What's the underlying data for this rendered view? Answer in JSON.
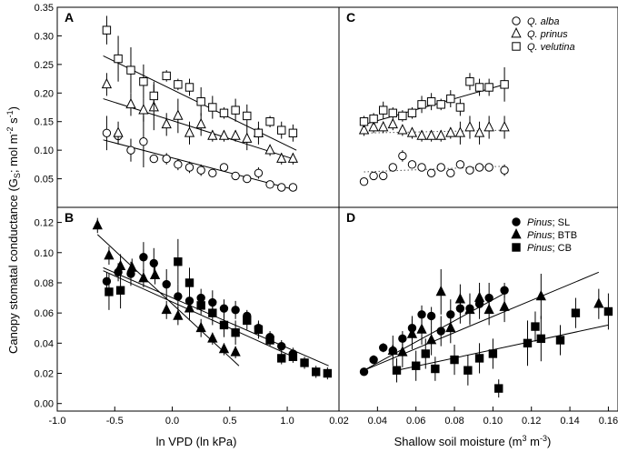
{
  "figure": {
    "y_label": "Canopy stomatal conductance (G",
    "y_label_sub": "S",
    "y_label_rest": "; mol m",
    "y_label_sup1": "-2",
    "y_label_sp": " s",
    "y_label_sup2": "-1",
    "y_label_end": ")",
    "x_label_left": "ln VPD (ln kPa)",
    "x_label_right_main": "Shallow soil moisture (m",
    "x_label_right_sup1": "3",
    "x_label_right_mid": " m",
    "x_label_right_sup2": "-3",
    "x_label_right_end": ")"
  },
  "chart_data": [
    {
      "panel": "A",
      "type": "scatter",
      "xlabel": "ln VPD (ln kPa)",
      "ylabel": "Canopy stomatal conductance (GS; mol m-2 s-1)",
      "xlim": [
        -1.0,
        1.45
      ],
      "ylim": [
        0,
        0.35
      ],
      "yticks": [
        "0.35",
        "0.30",
        "0.25",
        "0.20",
        "0.15",
        "0.10",
        "0.05"
      ],
      "yticks_values": [
        0.35,
        0.3,
        0.25,
        0.2,
        0.15,
        0.1,
        0.05
      ],
      "legend_position": "none",
      "series": [
        {
          "name": "Q. alba",
          "marker": "circle-open",
          "x": [
            -0.57,
            -0.47,
            -0.36,
            -0.25,
            -0.16,
            -0.05,
            0.05,
            0.15,
            0.25,
            0.35,
            0.45,
            0.55,
            0.65,
            0.75,
            0.85,
            0.95,
            1.05
          ],
          "y": [
            0.13,
            0.125,
            0.1,
            0.115,
            0.085,
            0.085,
            0.075,
            0.07,
            0.065,
            0.06,
            0.07,
            0.055,
            0.05,
            0.06,
            0.04,
            0.035,
            0.035
          ],
          "err": [
            0.03,
            0.01,
            0.02,
            0.045,
            0.005,
            0.01,
            0.01,
            0.01,
            0.01,
            0.005,
            0.005,
            0.005,
            0.005,
            0.01,
            0.005,
            0.005,
            0.005
          ],
          "fit": [
            [
              -0.6,
              0.118
            ],
            [
              1.08,
              0.03
            ]
          ],
          "fit_style": "solid"
        },
        {
          "name": "Q. prinus",
          "marker": "triangle-open",
          "x": [
            -0.57,
            -0.47,
            -0.36,
            -0.25,
            -0.16,
            -0.05,
            0.05,
            0.15,
            0.25,
            0.35,
            0.45,
            0.55,
            0.65,
            0.75,
            0.85,
            0.95,
            1.05
          ],
          "y": [
            0.215,
            0.13,
            0.18,
            0.17,
            0.175,
            0.145,
            0.16,
            0.13,
            0.145,
            0.125,
            0.125,
            0.125,
            0.12,
            0.13,
            0.1,
            0.085,
            0.085
          ],
          "err": [
            0.02,
            0.02,
            0.02,
            0.02,
            0.04,
            0.02,
            0.03,
            0.02,
            0.02,
            0.01,
            0.01,
            0.01,
            0.02,
            0.02,
            0.01,
            0.01,
            0.01
          ],
          "fit": [
            [
              -0.6,
              0.19
            ],
            [
              1.08,
              0.083
            ]
          ],
          "fit_style": "solid"
        },
        {
          "name": "Q. velutina",
          "marker": "square-open",
          "x": [
            -0.57,
            -0.47,
            -0.36,
            -0.25,
            -0.16,
            -0.05,
            0.05,
            0.15,
            0.25,
            0.35,
            0.45,
            0.55,
            0.65,
            0.75,
            0.85,
            0.95,
            1.05
          ],
          "y": [
            0.31,
            0.26,
            0.24,
            0.22,
            0.195,
            0.23,
            0.215,
            0.21,
            0.185,
            0.175,
            0.165,
            0.17,
            0.16,
            0.13,
            0.15,
            0.135,
            0.13
          ],
          "err": [
            0.025,
            0.04,
            0.04,
            0.03,
            0.025,
            0.01,
            0.01,
            0.015,
            0.025,
            0.02,
            0.01,
            0.02,
            0.02,
            0.01,
            0.01,
            0.015,
            0.015
          ],
          "fit": [
            [
              -0.6,
              0.265
            ],
            [
              1.08,
              0.1
            ]
          ],
          "fit_style": "solid"
        }
      ]
    },
    {
      "panel": "C",
      "type": "scatter",
      "xlabel": "Shallow soil moisture (m3 m-3)",
      "xlim": [
        0.02,
        0.165
      ],
      "ylim": [
        0,
        0.35
      ],
      "legend_position": "top-right",
      "legend": [
        "Q. alba",
        "Q. prinus",
        "Q. velutina"
      ],
      "series": [
        {
          "name": "Q. alba",
          "marker": "circle-open",
          "x": [
            0.033,
            0.038,
            0.043,
            0.048,
            0.053,
            0.058,
            0.063,
            0.068,
            0.073,
            0.078,
            0.083,
            0.088,
            0.093,
            0.098,
            0.106
          ],
          "y": [
            0.045,
            0.055,
            0.055,
            0.07,
            0.09,
            0.075,
            0.07,
            0.06,
            0.07,
            0.06,
            0.075,
            0.065,
            0.07,
            0.07,
            0.065
          ],
          "err": [
            0.005,
            0.005,
            0.005,
            0.005,
            0.01,
            0.005,
            0.005,
            0.005,
            0.005,
            0.005,
            0.005,
            0.005,
            0.005,
            0.005,
            0.01
          ],
          "fit": [
            [
              0.033,
              0.062
            ],
            [
              0.106,
              0.072
            ]
          ],
          "fit_style": "dotted"
        },
        {
          "name": "Q. prinus",
          "marker": "triangle-open",
          "x": [
            0.033,
            0.038,
            0.043,
            0.048,
            0.053,
            0.058,
            0.063,
            0.068,
            0.073,
            0.078,
            0.083,
            0.088,
            0.093,
            0.098,
            0.106
          ],
          "y": [
            0.135,
            0.14,
            0.14,
            0.145,
            0.135,
            0.13,
            0.125,
            0.125,
            0.125,
            0.13,
            0.13,
            0.14,
            0.13,
            0.14,
            0.14
          ],
          "err": [
            0.01,
            0.01,
            0.01,
            0.01,
            0.01,
            0.01,
            0.01,
            0.01,
            0.01,
            0.01,
            0.02,
            0.02,
            0.02,
            0.02,
            0.02
          ],
          "fit": [
            [
              0.033,
              0.13
            ],
            [
              0.106,
              0.135
            ]
          ],
          "fit_style": "dotted"
        },
        {
          "name": "Q. velutina",
          "marker": "square-open",
          "x": [
            0.033,
            0.038,
            0.043,
            0.048,
            0.053,
            0.058,
            0.063,
            0.068,
            0.073,
            0.078,
            0.083,
            0.088,
            0.093,
            0.098,
            0.106
          ],
          "y": [
            0.15,
            0.155,
            0.17,
            0.165,
            0.16,
            0.165,
            0.18,
            0.185,
            0.18,
            0.19,
            0.175,
            0.22,
            0.21,
            0.21,
            0.215
          ],
          "err": [
            0.01,
            0.01,
            0.015,
            0.01,
            0.01,
            0.01,
            0.015,
            0.015,
            0.01,
            0.015,
            0.015,
            0.015,
            0.015,
            0.015,
            0.03
          ],
          "fit": [
            [
              0.033,
              0.145
            ],
            [
              0.106,
              0.215
            ]
          ],
          "fit_style": "solid"
        }
      ]
    },
    {
      "panel": "B",
      "type": "scatter",
      "xlabel": "ln VPD (ln kPa)",
      "xlim": [
        -1.0,
        1.45
      ],
      "ylim": [
        -0.005,
        0.13
      ],
      "xticks": [
        "-1.0",
        "-0.5",
        "0.0",
        "0.5",
        "1.0"
      ],
      "xticks_values": [
        -1.0,
        -0.5,
        0.0,
        0.5,
        1.0
      ],
      "yticks": [
        "0.12",
        "0.10",
        "0.08",
        "0.06",
        "0.04",
        "0.02",
        "0.00"
      ],
      "yticks_values": [
        0.12,
        0.1,
        0.08,
        0.06,
        0.04,
        0.02,
        0.0
      ],
      "legend_position": "none",
      "series": [
        {
          "name": "Pinus; SL",
          "marker": "circle-filled",
          "x": [
            -0.57,
            -0.47,
            -0.36,
            -0.25,
            -0.16,
            -0.05,
            0.05,
            0.15,
            0.25,
            0.35,
            0.45,
            0.55,
            0.65,
            0.75,
            0.85,
            0.95,
            1.05
          ],
          "y": [
            0.081,
            0.087,
            0.086,
            0.097,
            0.093,
            0.079,
            0.071,
            0.068,
            0.07,
            0.067,
            0.063,
            0.062,
            0.058,
            0.05,
            0.044,
            0.038,
            0.033
          ],
          "err": [
            0.006,
            0.006,
            0.008,
            0.01,
            0.01,
            0.01,
            0.008,
            0.006,
            0.006,
            0.008,
            0.006,
            0.006,
            0.004,
            0.004,
            0.004,
            0.004,
            0.004
          ],
          "fit": [
            [
              -0.6,
              0.088
            ],
            [
              1.08,
              0.03
            ]
          ],
          "fit_style": "solid"
        },
        {
          "name": "Pinus; BTB",
          "marker": "triangle-filled",
          "x": [
            -0.65,
            -0.55,
            -0.45,
            -0.35,
            -0.25,
            -0.15,
            -0.05,
            0.05,
            0.15,
            0.25,
            0.35,
            0.45,
            0.55
          ],
          "y": [
            0.118,
            0.098,
            0.091,
            0.09,
            0.083,
            0.085,
            0.062,
            0.058,
            0.063,
            0.05,
            0.043,
            0.036,
            0.034
          ],
          "err": [
            0.005,
            0.006,
            0.008,
            0.006,
            0.006,
            0.006,
            0.006,
            0.006,
            0.008,
            0.006,
            0.004,
            0.004,
            0.004
          ],
          "fit": [
            [
              -0.65,
              0.112
            ],
            [
              0.58,
              0.025
            ]
          ],
          "fit_style": "solid"
        },
        {
          "name": "Pinus; CB",
          "marker": "square-filled",
          "x": [
            -0.55,
            -0.45,
            0.05,
            0.15,
            0.25,
            0.35,
            0.45,
            0.55,
            0.65,
            0.75,
            0.85,
            0.95,
            1.05,
            1.15,
            1.25,
            1.35
          ],
          "y": [
            0.074,
            0.075,
            0.094,
            0.08,
            0.065,
            0.06,
            0.052,
            0.047,
            0.055,
            0.049,
            0.042,
            0.03,
            0.031,
            0.027,
            0.021,
            0.02
          ],
          "err": [
            0.012,
            0.012,
            0.015,
            0.01,
            0.006,
            0.008,
            0.008,
            0.008,
            0.006,
            0.006,
            0.004,
            0.004,
            0.004,
            0.004,
            0.004,
            0.004
          ],
          "fit": [
            [
              -0.6,
              0.09
            ],
            [
              1.36,
              0.025
            ]
          ],
          "fit_style": "solid"
        }
      ]
    },
    {
      "panel": "D",
      "type": "scatter",
      "xlabel": "Shallow soil moisture (m3 m-3)",
      "xlim": [
        0.02,
        0.165
      ],
      "ylim": [
        -0.005,
        0.13
      ],
      "xticks": [
        "0.02",
        "0.04",
        "0.06",
        "0.08",
        "0.10",
        "0.12",
        "0.14",
        "0.16"
      ],
      "xticks_values": [
        0.02,
        0.04,
        0.06,
        0.08,
        0.1,
        0.12,
        0.14,
        0.16
      ],
      "legend_position": "top-right",
      "legend": [
        "Pinus; SL",
        "Pinus; BTB",
        "Pinus; CB"
      ],
      "series": [
        {
          "name": "Pinus; SL",
          "marker": "circle-filled",
          "x": [
            0.033,
            0.038,
            0.043,
            0.048,
            0.053,
            0.058,
            0.063,
            0.068,
            0.073,
            0.078,
            0.083,
            0.088,
            0.093,
            0.098,
            0.106
          ],
          "y": [
            0.021,
            0.029,
            0.037,
            0.035,
            0.043,
            0.05,
            0.059,
            0.058,
            0.048,
            0.059,
            0.063,
            0.063,
            0.066,
            0.07,
            0.075
          ],
          "err": [
            0.002,
            0.003,
            0.003,
            0.004,
            0.005,
            0.008,
            0.006,
            0.006,
            0.01,
            0.01,
            0.01,
            0.01,
            0.01,
            0.01,
            0.005
          ],
          "fit": [
            [
              0.033,
              0.022
            ],
            [
              0.106,
              0.073
            ]
          ],
          "fit_style": "solid"
        },
        {
          "name": "Pinus; BTB",
          "marker": "triangle-filled",
          "x": [
            0.048,
            0.053,
            0.058,
            0.063,
            0.068,
            0.073,
            0.078,
            0.083,
            0.088,
            0.093,
            0.098,
            0.106,
            0.125,
            0.155
          ],
          "y": [
            0.035,
            0.034,
            0.046,
            0.049,
            0.042,
            0.074,
            0.05,
            0.069,
            0.062,
            0.07,
            0.062,
            0.064,
            0.071,
            0.066
          ],
          "err": [
            0.01,
            0.01,
            0.01,
            0.01,
            0.01,
            0.015,
            0.01,
            0.01,
            0.01,
            0.01,
            0.01,
            0.01,
            0.015,
            0.01
          ],
          "fit": [
            [
              0.033,
              0.022
            ],
            [
              0.155,
              0.087
            ]
          ],
          "fit_style": "solid"
        },
        {
          "name": "Pinus; CB",
          "marker": "square-filled",
          "x": [
            0.05,
            0.06,
            0.065,
            0.07,
            0.08,
            0.087,
            0.093,
            0.1,
            0.103,
            0.118,
            0.122,
            0.125,
            0.135,
            0.143,
            0.16
          ],
          "y": [
            0.022,
            0.025,
            0.033,
            0.023,
            0.029,
            0.022,
            0.03,
            0.033,
            0.01,
            0.04,
            0.051,
            0.043,
            0.042,
            0.06,
            0.061
          ],
          "err": [
            0.008,
            0.01,
            0.01,
            0.008,
            0.01,
            0.01,
            0.01,
            0.01,
            0.006,
            0.015,
            0.01,
            0.015,
            0.01,
            0.01,
            0.012
          ],
          "fit": [
            [
              0.05,
              0.022
            ],
            [
              0.16,
              0.052
            ]
          ],
          "fit_style": "solid"
        }
      ]
    }
  ]
}
